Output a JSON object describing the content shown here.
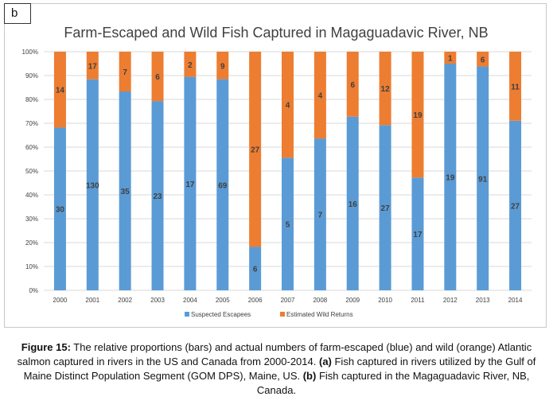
{
  "panel_label": "b",
  "caption": {
    "figure_label": "Figure 15:",
    "text_1": " The relative proportions (bars) and actual numbers of farm-escaped (blue) and wild (orange) Atlantic salmon captured in rivers in the US and Canada from 2000-2014. ",
    "label_a": "(a)",
    "text_2": " Fish captured in rivers utilized by the Gulf of Maine Distinct Population Segment (GOM DPS), Maine, US. ",
    "label_b": "(b)",
    "text_3": " Fish captured in the Magaguadavic River, NB, Canada."
  },
  "chart_data": {
    "type": "bar",
    "stacked": "percent",
    "title": "Farm-Escaped and Wild Fish Captured in Magaguadavic River, NB",
    "xlabel": "",
    "ylabel": "",
    "ylim": [
      0,
      100
    ],
    "yticks": [
      "0%",
      "10%",
      "20%",
      "30%",
      "40%",
      "50%",
      "60%",
      "70%",
      "80%",
      "90%",
      "100%"
    ],
    "categories": [
      "2000",
      "2001",
      "2002",
      "2003",
      "2004",
      "2005",
      "2006",
      "2007",
      "2008",
      "2009",
      "2010",
      "2011",
      "2012",
      "2013",
      "2014"
    ],
    "series": [
      {
        "name": "Suspected Escapees",
        "color": "#5b9bd5",
        "values": [
          30,
          130,
          35,
          23,
          17,
          69,
          6,
          5,
          7,
          16,
          27,
          17,
          19,
          91,
          27
        ]
      },
      {
        "name": "Estimated Wild Returns",
        "color": "#ed7d31",
        "values": [
          14,
          17,
          7,
          6,
          2,
          9,
          27,
          4,
          4,
          6,
          12,
          19,
          1,
          6,
          11
        ]
      }
    ],
    "grid": true,
    "legend": "bottom"
  }
}
